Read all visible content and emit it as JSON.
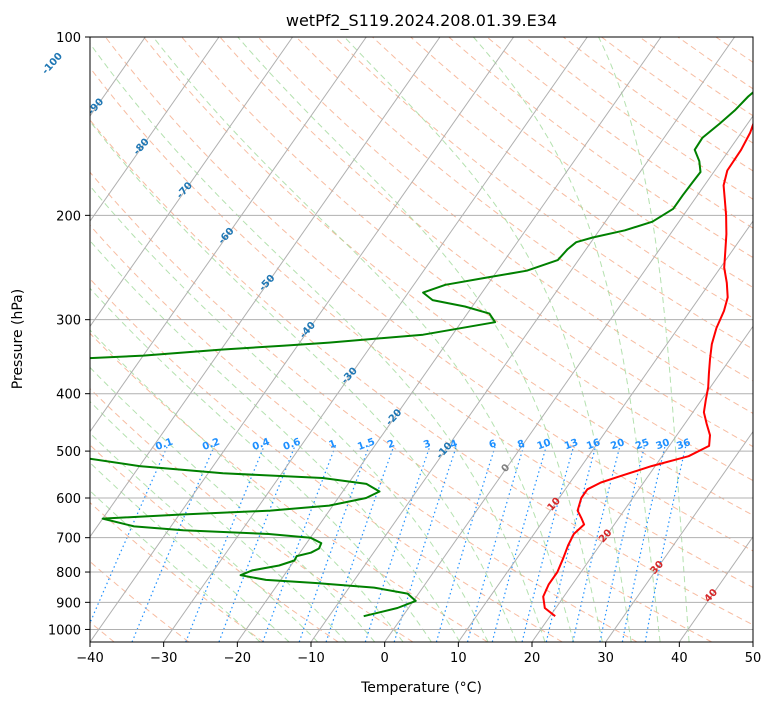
{
  "chart_data": {
    "type": "line",
    "title": "wetPf2_S119.2024.208.01.39.E34",
    "xlabel": "Temperature (°C)",
    "ylabel": "Pressure (hPa)",
    "xlim": [
      -40,
      50
    ],
    "ylim": [
      1050,
      100
    ],
    "yscale": "log",
    "xticks": [
      "-40",
      "-30",
      "-20",
      "-10",
      "0",
      "10",
      "20",
      "30",
      "40",
      "50"
    ],
    "yticks": [
      "100",
      "200",
      "300",
      "400",
      "500",
      "600",
      "700",
      "800",
      "900",
      "1000"
    ],
    "grid": true,
    "series": [
      {
        "color": "#ff0000",
        "points": [
          [
            20.7,
            950
          ],
          [
            18.5,
            920
          ],
          [
            17.2,
            880
          ],
          [
            16.8,
            840
          ],
          [
            16.8,
            800
          ],
          [
            16.3,
            760
          ],
          [
            15.7,
            720
          ],
          [
            15.4,
            690
          ],
          [
            15.9,
            665
          ],
          [
            15.0,
            650
          ],
          [
            13.7,
            630
          ],
          [
            13.0,
            600
          ],
          [
            13.0,
            580
          ],
          [
            14.2,
            565
          ],
          [
            16.4,
            550
          ],
          [
            19.5,
            530
          ],
          [
            23.6,
            510
          ],
          [
            25.4,
            490
          ],
          [
            24.5,
            470
          ],
          [
            23.0,
            450
          ],
          [
            21.5,
            430
          ],
          [
            20.6,
            410
          ],
          [
            19.7,
            390
          ],
          [
            18.5,
            370
          ],
          [
            17.3,
            350
          ],
          [
            16.1,
            330
          ],
          [
            15.2,
            310
          ],
          [
            14.6,
            290
          ],
          [
            13.8,
            275
          ],
          [
            12.3,
            260
          ],
          [
            10.5,
            245
          ],
          [
            9.1,
            230
          ],
          [
            7.6,
            215
          ],
          [
            5.8,
            200
          ],
          [
            4.1,
            188
          ],
          [
            2.6,
            178
          ],
          [
            1.7,
            168
          ],
          [
            1.6,
            155
          ],
          [
            1.2,
            145
          ],
          [
            0.6,
            138
          ],
          [
            -0.1,
            132
          ],
          [
            -0.8,
            125
          ],
          [
            -1.8,
            118
          ],
          [
            -1.5,
            110
          ],
          [
            -0.8,
            105
          ],
          [
            -0.2,
            100
          ]
        ]
      },
      {
        "color": "#008000",
        "points": [
          [
            -5.3,
            950
          ],
          [
            -1.5,
            920
          ],
          [
            0.3,
            895
          ],
          [
            -1.5,
            870
          ],
          [
            -6.6,
            850
          ],
          [
            -15.0,
            835
          ],
          [
            -22.0,
            825
          ],
          [
            -25.9,
            810
          ],
          [
            -24.8,
            795
          ],
          [
            -21.6,
            780
          ],
          [
            -20.0,
            765
          ],
          [
            -20.1,
            752
          ],
          [
            -18.5,
            742
          ],
          [
            -17.8,
            730
          ],
          [
            -18.0,
            715
          ],
          [
            -20.0,
            700
          ],
          [
            -26.0,
            690
          ],
          [
            -38.0,
            680
          ],
          [
            -45.0,
            670
          ],
          [
            -50.0,
            650
          ],
          [
            -40.0,
            640
          ],
          [
            -28.0,
            630
          ],
          [
            -20.5,
            618
          ],
          [
            -16.2,
            600
          ],
          [
            -15.0,
            585
          ],
          [
            -17.5,
            568
          ],
          [
            -24.0,
            555
          ],
          [
            -38.0,
            545
          ],
          [
            -50.0,
            530
          ],
          [
            -60.0,
            510
          ],
          [
            -70.0,
            450
          ],
          [
            -80.0,
            400
          ],
          [
            -90.0,
            360
          ],
          [
            -60.0,
            345
          ],
          [
            -50.0,
            337
          ],
          [
            -42.0,
            332
          ],
          [
            -36.0,
            328
          ],
          [
            -24.0,
            318
          ],
          [
            -15.4,
            303
          ],
          [
            -17.0,
            293
          ],
          [
            -21.0,
            285
          ],
          [
            -26.0,
            278
          ],
          [
            -28.0,
            270
          ],
          [
            -25.7,
            262
          ],
          [
            -21.0,
            255
          ],
          [
            -16.0,
            248
          ],
          [
            -12.8,
            238
          ],
          [
            -12.5,
            228
          ],
          [
            -12.0,
            222
          ],
          [
            -10.2,
            218
          ],
          [
            -6.5,
            212
          ],
          [
            -3.6,
            205
          ],
          [
            -2.0,
            195
          ],
          [
            -2.0,
            185
          ],
          [
            -1.9,
            176
          ],
          [
            -1.8,
            169
          ],
          [
            -3.0,
            162
          ],
          [
            -4.7,
            155
          ],
          [
            -4.8,
            148
          ],
          [
            -3.8,
            140
          ],
          [
            -3.0,
            133
          ],
          [
            -2.5,
            126
          ],
          [
            -1.4,
            118
          ],
          [
            0.1,
            112
          ],
          [
            0.8,
            106
          ],
          [
            1.0,
            100
          ]
        ]
      }
    ],
    "isotherm_labels": [
      "-100",
      "-90",
      "-80",
      "-70",
      "-60",
      "-50",
      "-40",
      "-30",
      "-20",
      "-10",
      "0",
      "10",
      "20",
      "30",
      "40"
    ],
    "mixing_ratio_labels": [
      "0.1",
      "0.2",
      "0.4",
      "0.6",
      "1",
      "1.5",
      "2",
      "3",
      "4",
      "6",
      "8",
      "10",
      "13",
      "16",
      "20",
      "25",
      "30",
      "36"
    ],
    "colors": {
      "temperature": "#ff0000",
      "dewpoint": "#008000",
      "isotherm_cold_label": "#1f77b4",
      "isotherm_zero_label": "#808080",
      "isotherm_warm_label": "#d62728",
      "mixing_ratio": "#1e90ff",
      "dry_adiabat": "#f4a582",
      "moist_adiabat": "#a1d99b",
      "grid": "#b0b0b0"
    }
  }
}
